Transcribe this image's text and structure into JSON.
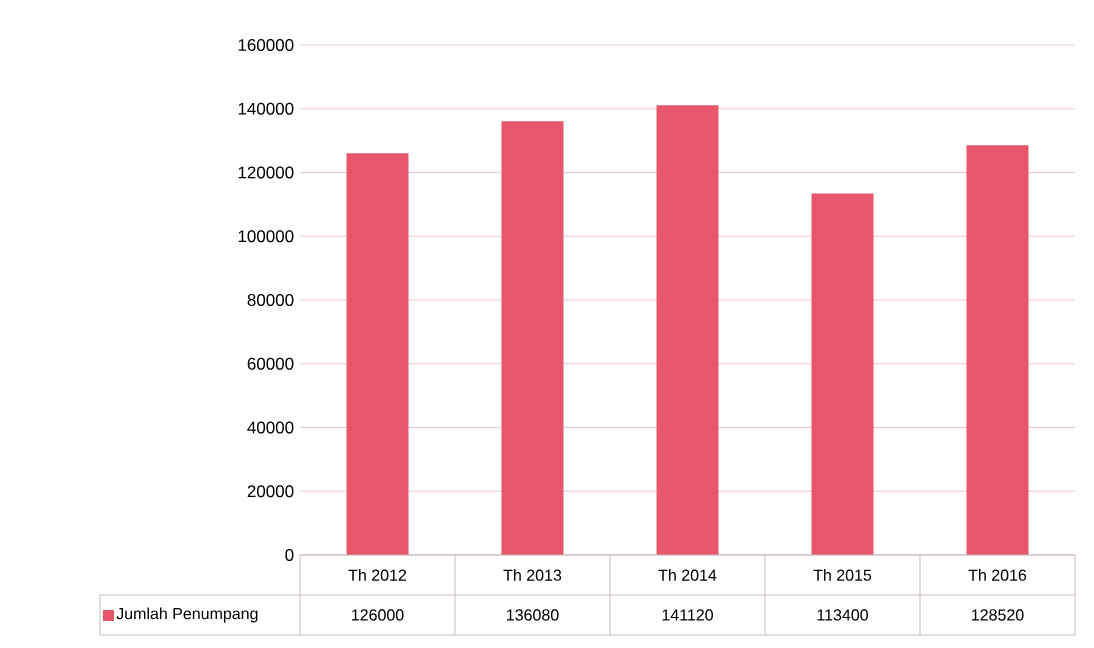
{
  "chart_data": {
    "type": "bar",
    "categories": [
      "Th 2012",
      "Th 2013",
      "Th 2014",
      "Th 2015",
      "Th 2016"
    ],
    "series": [
      {
        "name": "Jumlah Penumpang",
        "color": "#e8566c",
        "values": [
          126000,
          136080,
          141120,
          113400,
          128520
        ]
      }
    ],
    "ylim": [
      0,
      160000
    ],
    "yticks": [
      0,
      20000,
      40000,
      60000,
      80000,
      100000,
      120000,
      140000,
      160000
    ],
    "grid": "y",
    "legend": "bottom left",
    "data_labels": true
  }
}
